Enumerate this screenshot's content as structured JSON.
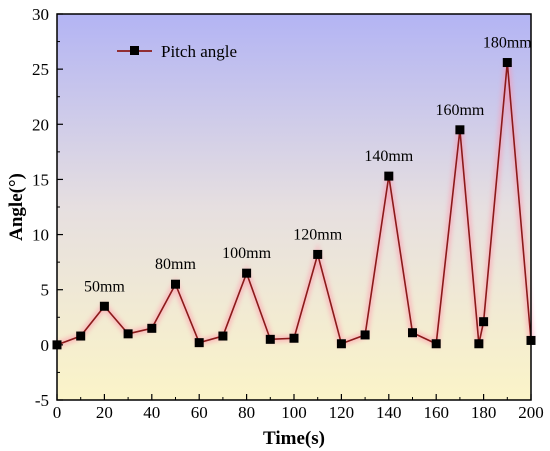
{
  "chart_data": {
    "type": "line",
    "title": "",
    "xlabel": "Time(s)",
    "ylabel": "Angle(°)",
    "xlim": [
      0,
      200
    ],
    "ylim": [
      -5,
      30
    ],
    "xticks": [
      0,
      20,
      40,
      60,
      80,
      100,
      120,
      140,
      160,
      180,
      200
    ],
    "yticks": [
      -5,
      0,
      5,
      10,
      15,
      20,
      25,
      30
    ],
    "grid": false,
    "legend_position": "top-left",
    "series": [
      {
        "name": "Pitch angle",
        "color": "#8b1a1a",
        "marker": "square",
        "x": [
          0,
          10,
          20,
          30,
          40,
          50,
          60,
          70,
          80,
          90,
          100,
          110,
          120,
          130,
          140,
          150,
          160,
          170,
          178,
          180,
          190,
          200
        ],
        "y": [
          0.0,
          0.8,
          3.5,
          1.0,
          1.5,
          5.5,
          0.2,
          0.8,
          6.5,
          0.5,
          0.6,
          8.2,
          0.1,
          0.9,
          15.3,
          1.1,
          0.1,
          19.5,
          0.1,
          2.1,
          25.6,
          0.4
        ]
      }
    ],
    "annotations": [
      {
        "text": "50mm",
        "x": 20,
        "y": 3.5
      },
      {
        "text": "80mm",
        "x": 50,
        "y": 5.5
      },
      {
        "text": "100mm",
        "x": 80,
        "y": 6.5
      },
      {
        "text": "120mm",
        "x": 110,
        "y": 8.2
      },
      {
        "text": "140mm",
        "x": 140,
        "y": 15.3
      },
      {
        "text": "160mm",
        "x": 170,
        "y": 19.5
      },
      {
        "text": "180mm",
        "x": 190,
        "y": 25.6
      }
    ],
    "background_gradient": {
      "top": "#b3b4f4",
      "bottom": "#fbf4c8"
    }
  }
}
